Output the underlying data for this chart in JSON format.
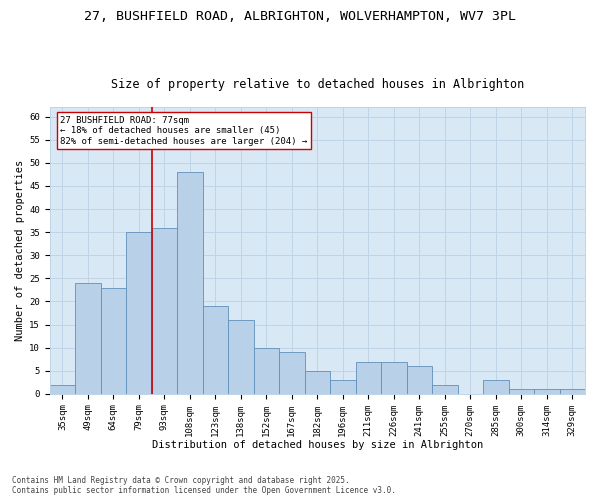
{
  "title_line1": "27, BUSHFIELD ROAD, ALBRIGHTON, WOLVERHAMPTON, WV7 3PL",
  "title_line2": "Size of property relative to detached houses in Albrighton",
  "xlabel": "Distribution of detached houses by size in Albrighton",
  "ylabel": "Number of detached properties",
  "categories": [
    "35sqm",
    "49sqm",
    "64sqm",
    "79sqm",
    "93sqm",
    "108sqm",
    "123sqm",
    "138sqm",
    "152sqm",
    "167sqm",
    "182sqm",
    "196sqm",
    "211sqm",
    "226sqm",
    "241sqm",
    "255sqm",
    "270sqm",
    "285sqm",
    "300sqm",
    "314sqm",
    "329sqm"
  ],
  "values": [
    2,
    24,
    23,
    35,
    36,
    48,
    19,
    16,
    10,
    9,
    5,
    3,
    7,
    7,
    6,
    2,
    0,
    3,
    1,
    1,
    1
  ],
  "bar_color": "#b8d0e8",
  "bar_edge_color": "#6090bb",
  "grid_color": "#c0d4e8",
  "bg_color": "#d8e8f4",
  "vline_x_index": 3,
  "vline_color": "#cc0000",
  "annotation_text": "27 BUSHFIELD ROAD: 77sqm\n← 18% of detached houses are smaller (45)\n82% of semi-detached houses are larger (204) →",
  "annotation_box_color": "#cc0000",
  "ylim": [
    0,
    62
  ],
  "yticks": [
    0,
    5,
    10,
    15,
    20,
    25,
    30,
    35,
    40,
    45,
    50,
    55,
    60
  ],
  "footer": "Contains HM Land Registry data © Crown copyright and database right 2025.\nContains public sector information licensed under the Open Government Licence v3.0.",
  "title_fontsize": 9.5,
  "subtitle_fontsize": 8.5,
  "axis_label_fontsize": 7.5,
  "tick_fontsize": 6.5,
  "annotation_fontsize": 6.5,
  "footer_fontsize": 5.5
}
